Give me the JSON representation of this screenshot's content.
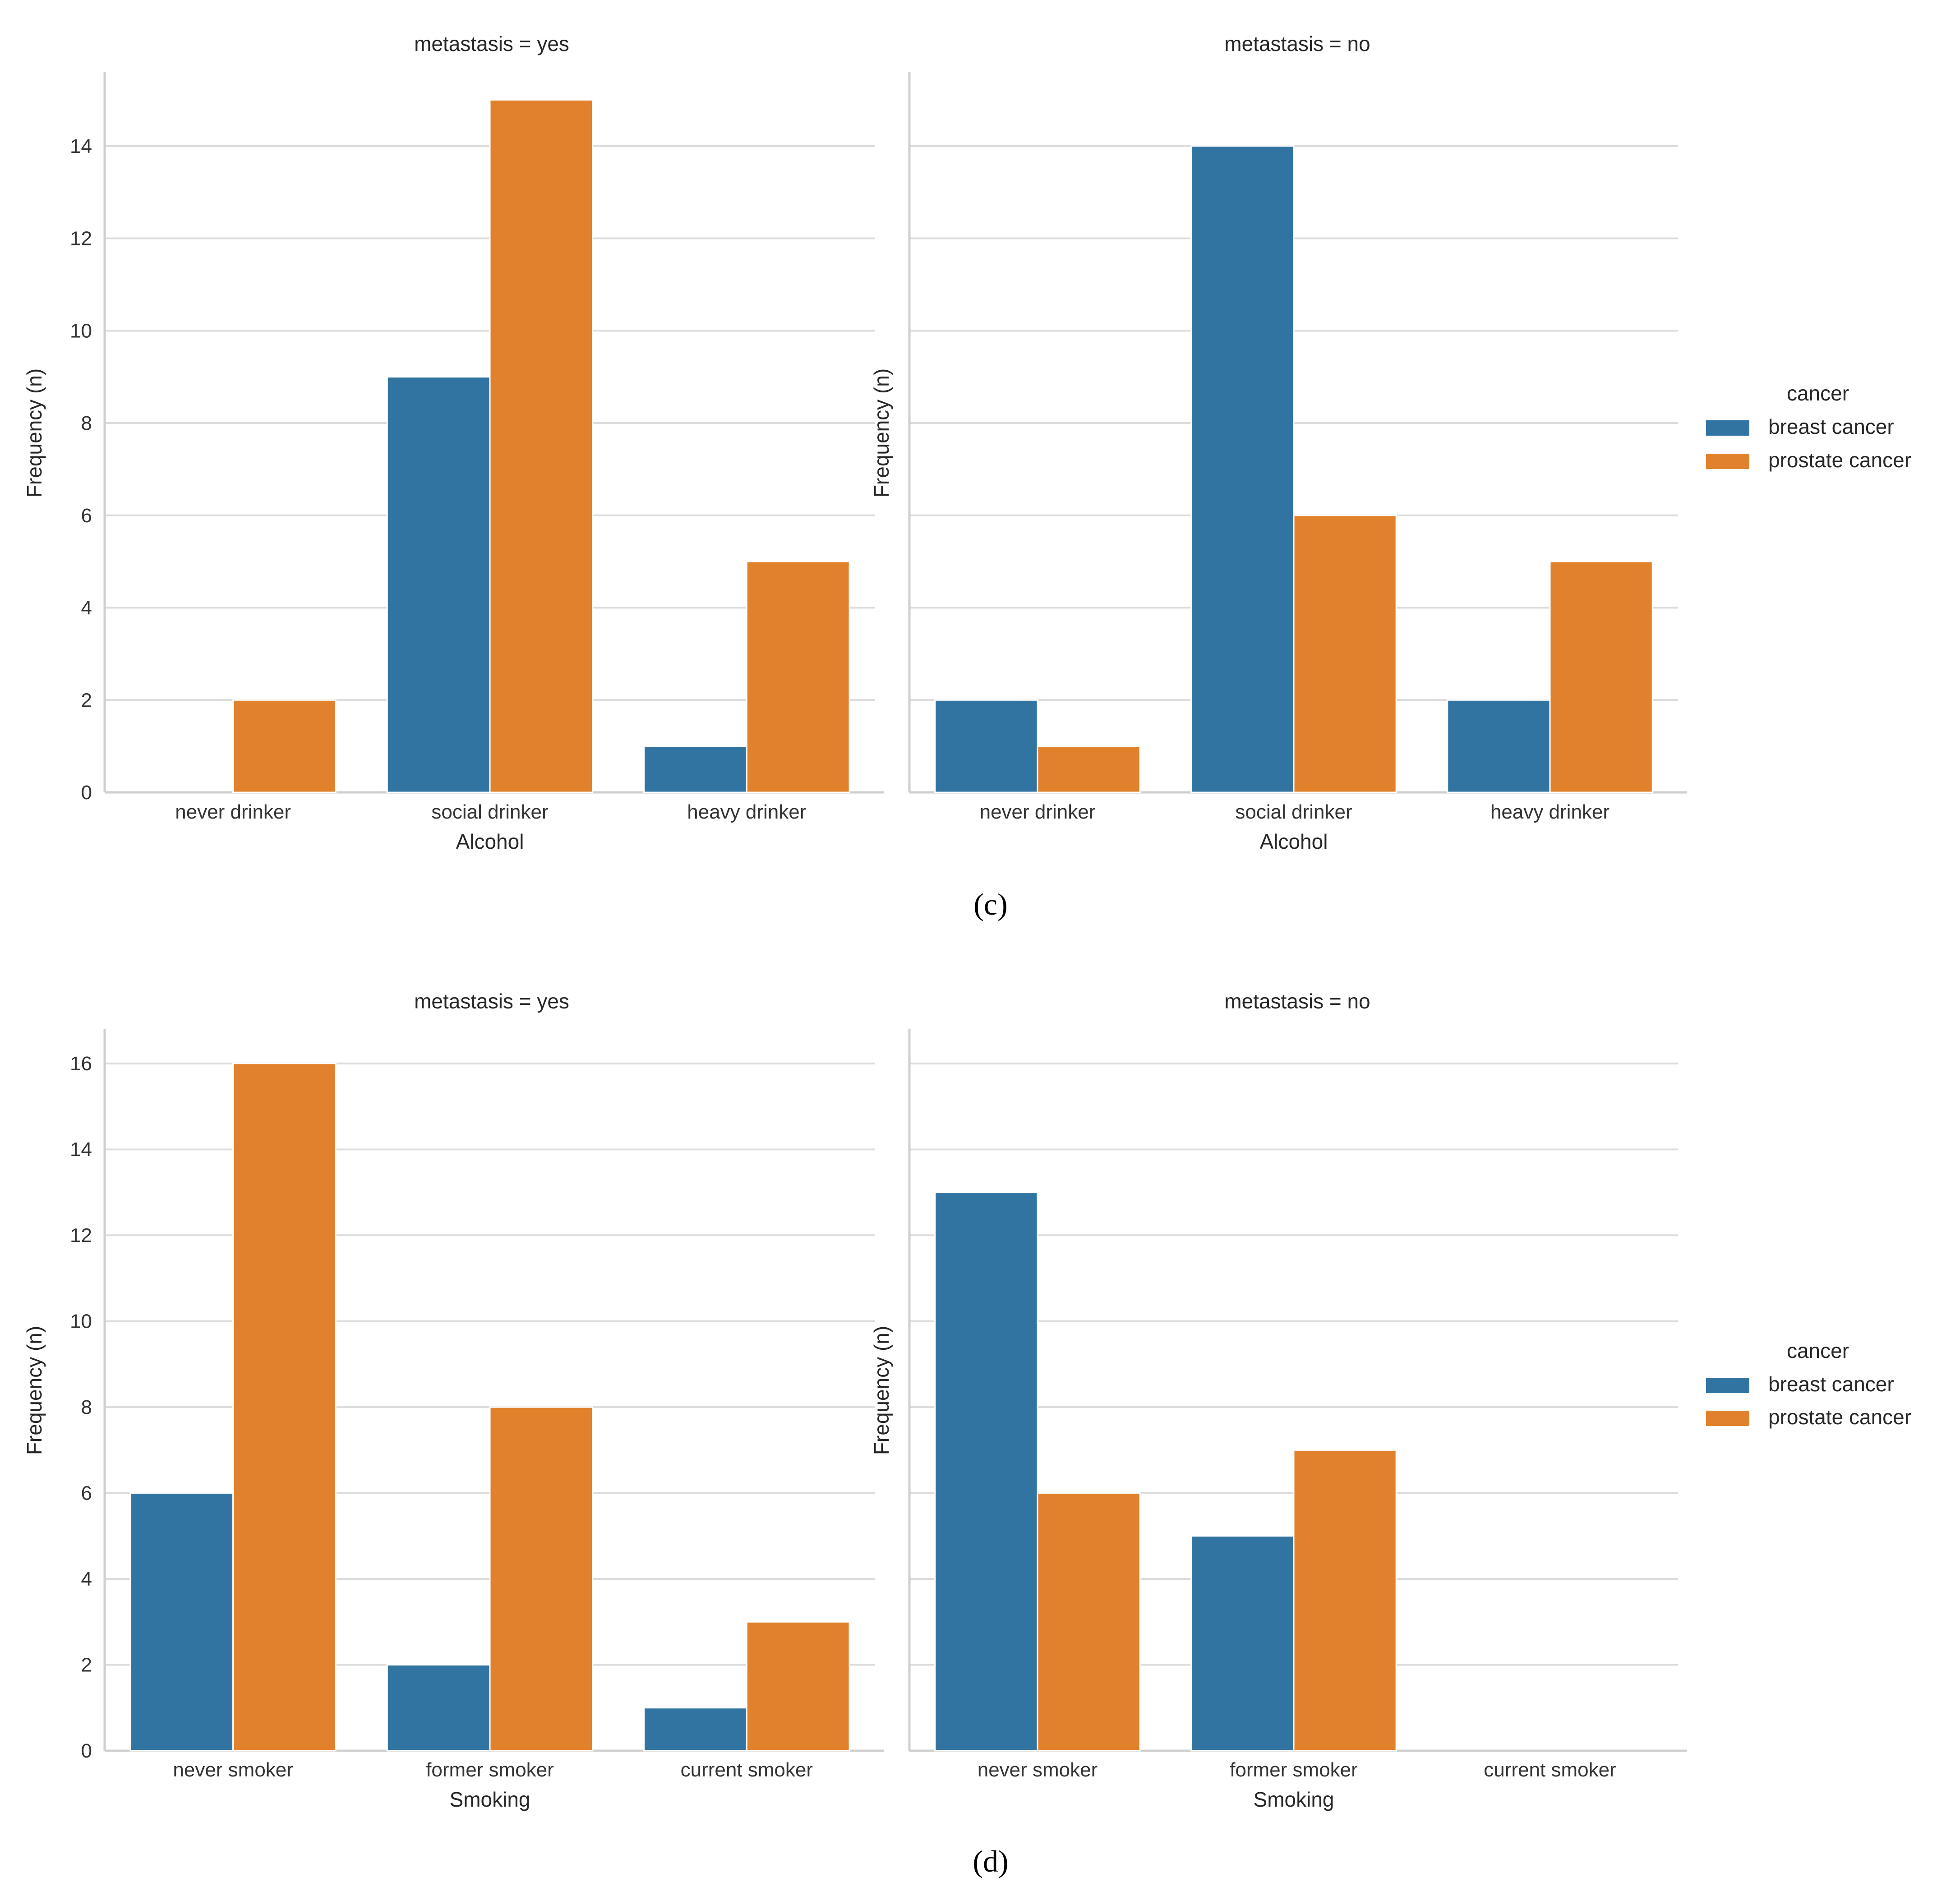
{
  "colors": {
    "breast": "#3274a1",
    "prostate": "#e1812c"
  },
  "chart_data": [
    {
      "type": "bar",
      "caption": "(c)",
      "legend": {
        "title": "cancer",
        "entries": [
          "breast cancer",
          "prostate cancer"
        ],
        "placement": "right"
      },
      "ylabel": "Frequency (n)",
      "ylim": [
        0,
        15.6
      ],
      "yticks": [
        0,
        2,
        4,
        6,
        8,
        10,
        12,
        14
      ],
      "panels": [
        {
          "title": "metastasis = yes",
          "xlabel": "Alcohol",
          "categories": [
            "never drinker",
            "social drinker",
            "heavy drinker"
          ],
          "series": [
            {
              "name": "breast cancer",
              "values": [
                0,
                9,
                1
              ]
            },
            {
              "name": "prostate cancer",
              "values": [
                2,
                15,
                5
              ]
            }
          ]
        },
        {
          "title": "metastasis = no",
          "xlabel": "Alcohol",
          "categories": [
            "never drinker",
            "social drinker",
            "heavy drinker"
          ],
          "series": [
            {
              "name": "breast cancer",
              "values": [
                2,
                14,
                2
              ]
            },
            {
              "name": "prostate cancer",
              "values": [
                1,
                6,
                5
              ]
            }
          ]
        }
      ]
    },
    {
      "type": "bar",
      "caption": "(d)",
      "legend": {
        "title": "cancer",
        "entries": [
          "breast cancer",
          "prostate cancer"
        ],
        "placement": "right"
      },
      "ylabel": "Frequency (n)",
      "ylim": [
        0,
        16.8
      ],
      "yticks": [
        0,
        2,
        4,
        6,
        8,
        10,
        12,
        14,
        16
      ],
      "panels": [
        {
          "title": "metastasis = yes",
          "xlabel": "Smoking",
          "categories": [
            "never smoker",
            "former smoker",
            "current smoker"
          ],
          "series": [
            {
              "name": "breast cancer",
              "values": [
                6,
                2,
                1
              ]
            },
            {
              "name": "prostate cancer",
              "values": [
                16,
                8,
                3
              ]
            }
          ]
        },
        {
          "title": "metastasis = no",
          "xlabel": "Smoking",
          "categories": [
            "never smoker",
            "former smoker",
            "current smoker"
          ],
          "series": [
            {
              "name": "breast cancer",
              "values": [
                13,
                5,
                0
              ]
            },
            {
              "name": "prostate cancer",
              "values": [
                6,
                7,
                0
              ]
            }
          ]
        }
      ]
    }
  ]
}
